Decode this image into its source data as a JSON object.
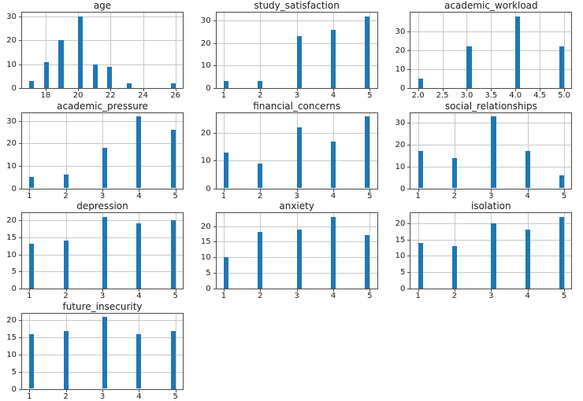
{
  "figure": {
    "background": "#ffffff",
    "bar_color": "#1f77b4",
    "grid_color": "#c8c8c8",
    "spine_color": "#4a4a4a",
    "text_color": "#1a1a1a",
    "rows": 4,
    "cols": 3
  },
  "chart_data": [
    {
      "type": "bar",
      "title": "age",
      "categories": [
        17,
        18,
        19,
        20,
        21,
        22,
        23,
        26
      ],
      "values": [
        3,
        11,
        20,
        30,
        10,
        9,
        2,
        2
      ],
      "bar_centers": [
        17.15,
        18.05,
        18.95,
        20.15,
        21.05,
        21.95,
        23.15,
        25.85
      ],
      "bin_width": 0.3,
      "xlim": [
        16.55,
        26.45
      ],
      "ylim": [
        0,
        31.5
      ],
      "xtick_values": [
        18,
        20,
        22,
        24,
        26
      ],
      "xtick_labels": [
        "18",
        "20",
        "22",
        "24",
        "26"
      ],
      "ytick_values": [
        0,
        10,
        20,
        30
      ],
      "ytick_labels": [
        "0",
        "10",
        "20",
        "30"
      ],
      "grid": true
    },
    {
      "type": "bar",
      "title": "study_satisfaction",
      "categories": [
        1,
        2,
        3,
        4,
        5
      ],
      "values": [
        3,
        3,
        23,
        26,
        32
      ],
      "bar_centers": [
        1.0667,
        2.0,
        3.0667,
        4.0,
        4.9333
      ],
      "bin_width": 0.1333,
      "xlim": [
        0.8,
        5.2
      ],
      "ylim": [
        0,
        33.6
      ],
      "xtick_values": [
        1,
        2,
        3,
        4,
        5
      ],
      "xtick_labels": [
        "1",
        "2",
        "3",
        "4",
        "5"
      ],
      "ytick_values": [
        0,
        10,
        20,
        30
      ],
      "ytick_labels": [
        "0",
        "10",
        "20",
        "30"
      ],
      "grid": true
    },
    {
      "type": "bar",
      "title": "academic_workload",
      "categories": [
        2,
        3,
        4,
        5
      ],
      "values": [
        5,
        22,
        38,
        22
      ],
      "bar_centers": [
        2.05,
        3.05,
        4.05,
        4.95
      ],
      "bin_width": 0.1,
      "xlim": [
        1.85,
        5.15
      ],
      "ylim": [
        0,
        39.9
      ],
      "xtick_values": [
        2.0,
        2.5,
        3.0,
        3.5,
        4.0,
        4.5,
        5.0
      ],
      "xtick_labels": [
        "2.0",
        "2.5",
        "3.0",
        "3.5",
        "4.0",
        "4.5",
        "5.0"
      ],
      "ytick_values": [
        0,
        10,
        20,
        30
      ],
      "ytick_labels": [
        "0",
        "10",
        "20",
        "30"
      ],
      "grid": true
    },
    {
      "type": "bar",
      "title": "academic_pressure",
      "categories": [
        1,
        2,
        3,
        4,
        5
      ],
      "values": [
        5,
        6,
        18,
        32,
        26
      ],
      "bar_centers": [
        1.0667,
        2.0,
        3.0667,
        4.0,
        4.9333
      ],
      "bin_width": 0.1333,
      "xlim": [
        0.8,
        5.2
      ],
      "ylim": [
        0,
        33.6
      ],
      "xtick_values": [
        1,
        2,
        3,
        4,
        5
      ],
      "xtick_labels": [
        "1",
        "2",
        "3",
        "4",
        "5"
      ],
      "ytick_values": [
        0,
        10,
        20,
        30
      ],
      "ytick_labels": [
        "0",
        "10",
        "20",
        "30"
      ],
      "grid": true
    },
    {
      "type": "bar",
      "title": "financial_concerns",
      "categories": [
        1,
        2,
        3,
        4,
        5
      ],
      "values": [
        13,
        9,
        22,
        17,
        26
      ],
      "bar_centers": [
        1.0667,
        2.0,
        3.0667,
        4.0,
        4.9333
      ],
      "bin_width": 0.1333,
      "xlim": [
        0.8,
        5.2
      ],
      "ylim": [
        0,
        27.3
      ],
      "xtick_values": [
        1,
        2,
        3,
        4,
        5
      ],
      "xtick_labels": [
        "1",
        "2",
        "3",
        "4",
        "5"
      ],
      "ytick_values": [
        0,
        10,
        20
      ],
      "ytick_labels": [
        "0",
        "10",
        "20"
      ],
      "grid": true
    },
    {
      "type": "bar",
      "title": "social_relationships",
      "categories": [
        1,
        2,
        3,
        4,
        5
      ],
      "values": [
        17,
        14,
        33,
        17,
        6
      ],
      "bar_centers": [
        1.0667,
        2.0,
        3.0667,
        4.0,
        4.9333
      ],
      "bin_width": 0.1333,
      "xlim": [
        0.8,
        5.2
      ],
      "ylim": [
        0,
        34.65
      ],
      "xtick_values": [
        1,
        2,
        3,
        4,
        5
      ],
      "xtick_labels": [
        "1",
        "2",
        "3",
        "4",
        "5"
      ],
      "ytick_values": [
        0,
        10,
        20,
        30
      ],
      "ytick_labels": [
        "0",
        "10",
        "20",
        "30"
      ],
      "grid": true
    },
    {
      "type": "bar",
      "title": "depression",
      "categories": [
        1,
        2,
        3,
        4,
        5
      ],
      "values": [
        13,
        14,
        21,
        19,
        20
      ],
      "bar_centers": [
        1.0667,
        2.0,
        3.0667,
        4.0,
        4.9333
      ],
      "bin_width": 0.1333,
      "xlim": [
        0.8,
        5.2
      ],
      "ylim": [
        0,
        22.05
      ],
      "xtick_values": [
        1,
        2,
        3,
        4,
        5
      ],
      "xtick_labels": [
        "1",
        "2",
        "3",
        "4",
        "5"
      ],
      "ytick_values": [
        0,
        5,
        10,
        15,
        20
      ],
      "ytick_labels": [
        "0",
        "5",
        "10",
        "15",
        "20"
      ],
      "grid": true
    },
    {
      "type": "bar",
      "title": "anxiety",
      "categories": [
        1,
        2,
        3,
        4,
        5
      ],
      "values": [
        10,
        18,
        19,
        23,
        17
      ],
      "bar_centers": [
        1.0667,
        2.0,
        3.0667,
        4.0,
        4.9333
      ],
      "bin_width": 0.1333,
      "xlim": [
        0.8,
        5.2
      ],
      "ylim": [
        0,
        24.15
      ],
      "xtick_values": [
        1,
        2,
        3,
        4,
        5
      ],
      "xtick_labels": [
        "1",
        "2",
        "3",
        "4",
        "5"
      ],
      "ytick_values": [
        0,
        5,
        10,
        15,
        20
      ],
      "ytick_labels": [
        "0",
        "5",
        "10",
        "15",
        "20"
      ],
      "grid": true
    },
    {
      "type": "bar",
      "title": "isolation",
      "categories": [
        1,
        2,
        3,
        4,
        5
      ],
      "values": [
        14,
        13,
        20,
        18,
        22
      ],
      "bar_centers": [
        1.0667,
        2.0,
        3.0667,
        4.0,
        4.9333
      ],
      "bin_width": 0.1333,
      "xlim": [
        0.8,
        5.2
      ],
      "ylim": [
        0,
        23.1
      ],
      "xtick_values": [
        1,
        2,
        3,
        4,
        5
      ],
      "xtick_labels": [
        "1",
        "2",
        "3",
        "4",
        "5"
      ],
      "ytick_values": [
        0,
        5,
        10,
        15,
        20
      ],
      "ytick_labels": [
        "0",
        "5",
        "10",
        "15",
        "20"
      ],
      "grid": true
    },
    {
      "type": "bar",
      "title": "future_insecurity",
      "categories": [
        1,
        2,
        3,
        4,
        5
      ],
      "values": [
        16,
        17,
        21,
        16,
        17
      ],
      "bar_centers": [
        1.0667,
        2.0,
        3.0667,
        4.0,
        4.9333
      ],
      "bin_width": 0.1333,
      "xlim": [
        0.8,
        5.2
      ],
      "ylim": [
        0,
        22.05
      ],
      "xtick_values": [
        1,
        2,
        3,
        4,
        5
      ],
      "xtick_labels": [
        "1",
        "2",
        "3",
        "4",
        "5"
      ],
      "ytick_values": [
        0,
        5,
        10,
        15,
        20
      ],
      "ytick_labels": [
        "0",
        "5",
        "10",
        "15",
        "20"
      ],
      "grid": true
    }
  ]
}
